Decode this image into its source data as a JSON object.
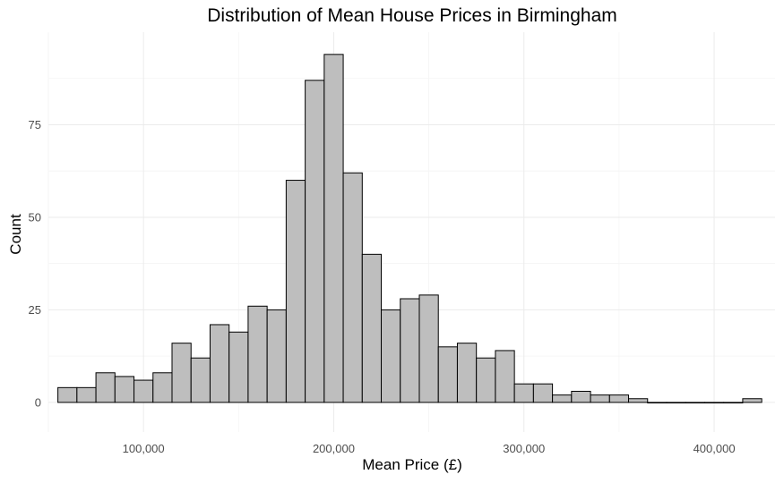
{
  "chart_data": {
    "type": "bar",
    "title": "Distribution of Mean House Prices in Birmingham",
    "xlabel": "Mean Price (£)",
    "ylabel": "Count",
    "bin_width": 10000,
    "bin_starts": [
      55000,
      65000,
      75000,
      85000,
      95000,
      105000,
      115000,
      125000,
      135000,
      145000,
      155000,
      165000,
      175000,
      185000,
      195000,
      205000,
      215000,
      225000,
      235000,
      245000,
      255000,
      265000,
      275000,
      285000,
      295000,
      305000,
      315000,
      325000,
      335000,
      345000,
      355000,
      365000,
      375000,
      385000,
      395000,
      405000,
      415000
    ],
    "values": [
      4,
      4,
      8,
      7,
      6,
      8,
      16,
      12,
      21,
      19,
      26,
      25,
      60,
      87,
      94,
      62,
      40,
      25,
      28,
      29,
      15,
      16,
      12,
      14,
      5,
      5,
      2,
      3,
      2,
      2,
      1,
      0,
      0,
      0,
      0,
      0,
      1
    ],
    "xlim": [
      50000,
      432000
    ],
    "ylim": [
      -8,
      100
    ],
    "x_ticks": [
      100000,
      200000,
      300000,
      400000
    ],
    "x_tick_labels": [
      "100,000",
      "200,000",
      "300,000",
      "400,000"
    ],
    "y_ticks": [
      0,
      25,
      50,
      75
    ],
    "y_tick_labels": [
      "0",
      "25",
      "50",
      "75"
    ],
    "grid": true,
    "legend": "none",
    "colors": {
      "bar_fill": "#bebebe",
      "bar_stroke": "#000000",
      "grid_major": "#ebebeb",
      "grid_minor": "#f4f4f4"
    }
  }
}
